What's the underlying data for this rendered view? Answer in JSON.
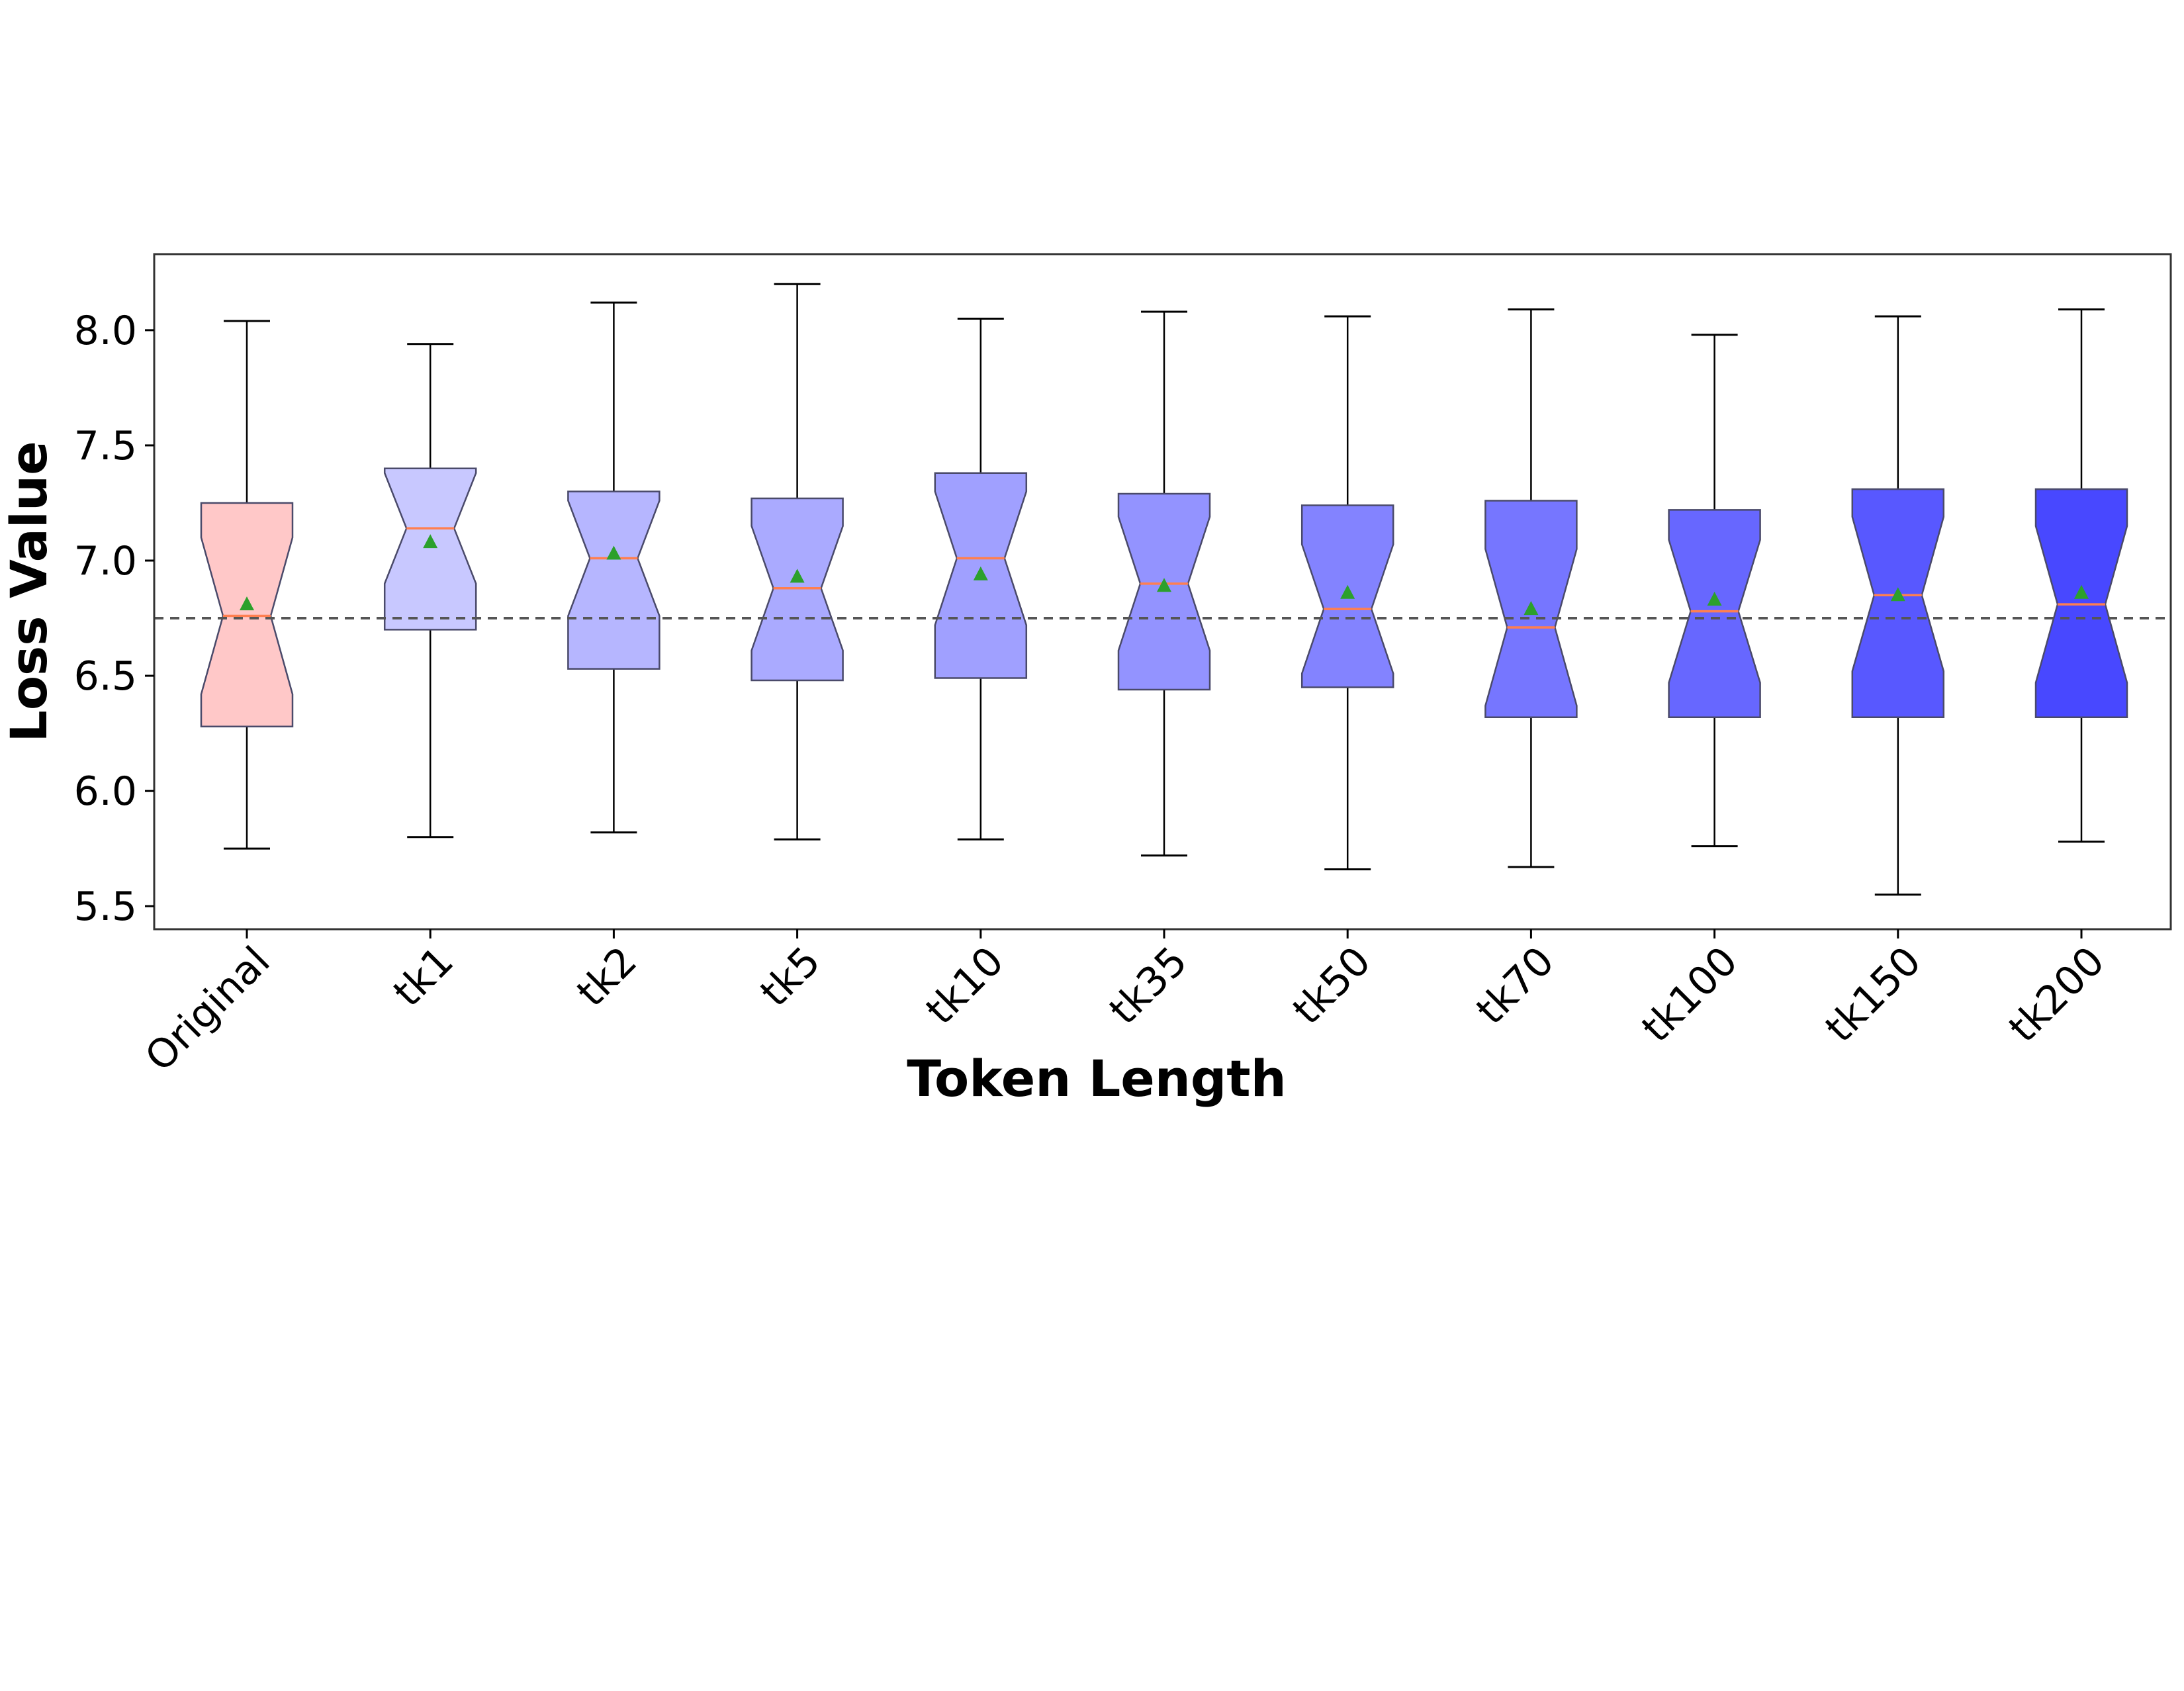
{
  "chart_data": {
    "type": "boxplot",
    "xlabel": "Token Length",
    "ylabel": "Loss Value",
    "ylim": [
      5.4,
      8.33
    ],
    "yticks": [
      5.5,
      6.0,
      6.5,
      7.0,
      7.5,
      8.0
    ],
    "notched": true,
    "grid": false,
    "categories": [
      "Original",
      "tk1",
      "tk2",
      "tk5",
      "tk10",
      "tk35",
      "tk50",
      "tk70",
      "tk100",
      "tk150",
      "tk200"
    ],
    "boxes": [
      {
        "label": "Original",
        "whislo": 5.75,
        "q1": 6.28,
        "median": 6.76,
        "q3": 7.25,
        "whishi": 8.04,
        "mean": 6.81,
        "notch_lo": 6.42,
        "notch_hi": 7.1
      },
      {
        "label": "tk1",
        "whislo": 5.8,
        "q1": 6.7,
        "median": 7.14,
        "q3": 7.4,
        "whishi": 7.94,
        "mean": 7.08,
        "notch_lo": 6.9,
        "notch_hi": 7.38
      },
      {
        "label": "tk2",
        "whislo": 5.82,
        "q1": 6.53,
        "median": 7.01,
        "q3": 7.3,
        "whishi": 8.12,
        "mean": 7.03,
        "notch_lo": 6.76,
        "notch_hi": 7.26
      },
      {
        "label": "tk5",
        "whislo": 5.79,
        "q1": 6.48,
        "median": 6.88,
        "q3": 7.27,
        "whishi": 8.2,
        "mean": 6.93,
        "notch_lo": 6.61,
        "notch_hi": 7.15
      },
      {
        "label": "tk10",
        "whislo": 5.79,
        "q1": 6.49,
        "median": 7.01,
        "q3": 7.38,
        "whishi": 8.05,
        "mean": 6.94,
        "notch_lo": 6.72,
        "notch_hi": 7.3
      },
      {
        "label": "tk35",
        "whislo": 5.72,
        "q1": 6.44,
        "median": 6.9,
        "q3": 7.29,
        "whishi": 8.08,
        "mean": 6.89,
        "notch_lo": 6.61,
        "notch_hi": 7.19
      },
      {
        "label": "tk50",
        "whislo": 5.66,
        "q1": 6.45,
        "median": 6.79,
        "q3": 7.24,
        "whishi": 8.06,
        "mean": 6.86,
        "notch_lo": 6.51,
        "notch_hi": 7.07
      },
      {
        "label": "tk70",
        "whislo": 5.67,
        "q1": 6.32,
        "median": 6.71,
        "q3": 7.26,
        "whishi": 8.09,
        "mean": 6.79,
        "notch_lo": 6.37,
        "notch_hi": 7.05
      },
      {
        "label": "tk100",
        "whislo": 5.76,
        "q1": 6.32,
        "median": 6.78,
        "q3": 7.22,
        "whishi": 7.98,
        "mean": 6.83,
        "notch_lo": 6.47,
        "notch_hi": 7.09
      },
      {
        "label": "tk150",
        "whislo": 5.55,
        "q1": 6.32,
        "median": 6.85,
        "q3": 7.31,
        "whishi": 8.06,
        "mean": 6.85,
        "notch_lo": 6.52,
        "notch_hi": 7.19
      },
      {
        "label": "tk200",
        "whislo": 5.78,
        "q1": 6.32,
        "median": 6.81,
        "q3": 7.31,
        "whishi": 8.09,
        "mean": 6.86,
        "notch_lo": 6.47,
        "notch_hi": 7.15
      }
    ],
    "reference_line": {
      "y": 6.75,
      "style": "dashed",
      "color": "#555555"
    },
    "colors": {
      "original": "#ffc8c8",
      "token_boxes": [
        "#c8c8ff",
        "#b6b6ff",
        "#aaaaff",
        "#a0a0ff",
        "#9393ff",
        "#8383ff",
        "#7676ff",
        "#6767ff",
        "#5858ff",
        "#4848ff"
      ],
      "median": "#ff7f50",
      "mean_marker": "#2ca02c",
      "box_edge": "#4a4a6a",
      "whisker": "#000000"
    }
  }
}
